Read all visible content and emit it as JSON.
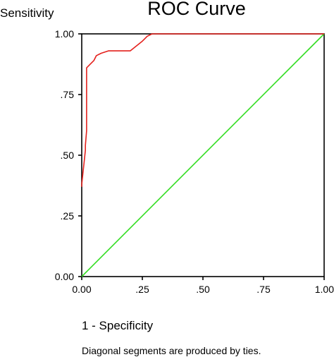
{
  "chart_data": {
    "type": "line",
    "title": "ROC Curve",
    "ylabel": "Sensitivity",
    "xlabel": "1 - Specificity",
    "note": "Diagonal segments are produced by ties.",
    "xlim": [
      0,
      1
    ],
    "ylim": [
      0,
      1
    ],
    "xticks": [
      {
        "value": 0.0,
        "label": "0.00"
      },
      {
        "value": 0.25,
        "label": ".25"
      },
      {
        "value": 0.5,
        "label": ".50"
      },
      {
        "value": 0.75,
        "label": ".75"
      },
      {
        "value": 1.0,
        "label": "1.00"
      }
    ],
    "yticks": [
      {
        "value": 0.0,
        "label": "0.00"
      },
      {
        "value": 0.25,
        "label": ".25"
      },
      {
        "value": 0.5,
        "label": ".50"
      },
      {
        "value": 0.75,
        "label": ".75"
      },
      {
        "value": 1.0,
        "label": "1.00"
      }
    ],
    "grid": false,
    "series": [
      {
        "color": "#e4201c",
        "x": [
          0.0,
          0.0,
          0.015,
          0.015,
          0.02,
          0.02,
          0.05,
          0.06,
          0.08,
          0.11,
          0.16,
          0.19,
          0.2,
          0.25,
          0.26,
          0.27,
          0.29,
          0.32,
          0.5,
          0.75,
          1.0
        ],
        "y": [
          0.37,
          0.38,
          0.52,
          0.54,
          0.6,
          0.86,
          0.89,
          0.91,
          0.92,
          0.93,
          0.93,
          0.93,
          0.93,
          0.97,
          0.98,
          0.99,
          1.0,
          1.0,
          1.0,
          1.0,
          1.0
        ]
      },
      {
        "color": "#33dd22",
        "x": [
          0,
          1
        ],
        "y": [
          0,
          1
        ]
      }
    ]
  }
}
